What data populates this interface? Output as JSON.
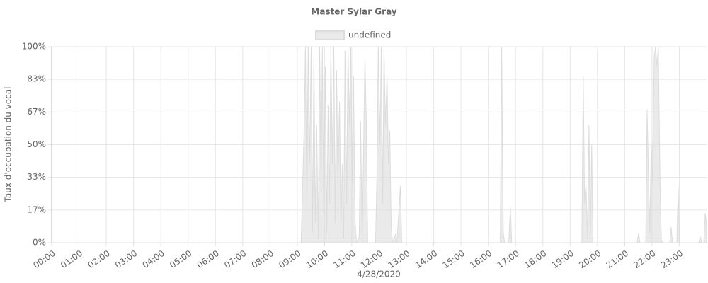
{
  "chart_data": {
    "type": "area",
    "title": "Master Sylar Gray",
    "x_label": "4/28/2020",
    "y_label": "Taux d'occupation du vocal",
    "legend": "top",
    "grid": true,
    "xlim": [
      0,
      24
    ],
    "xticks": [
      {
        "value": 0,
        "label": "00:00"
      },
      {
        "value": 1,
        "label": "01:00"
      },
      {
        "value": 2,
        "label": "02:00"
      },
      {
        "value": 3,
        "label": "03:00"
      },
      {
        "value": 4,
        "label": "04:00"
      },
      {
        "value": 5,
        "label": "05:00"
      },
      {
        "value": 6,
        "label": "06:00"
      },
      {
        "value": 7,
        "label": "07:00"
      },
      {
        "value": 8,
        "label": "08:00"
      },
      {
        "value": 9,
        "label": "09:00"
      },
      {
        "value": 10,
        "label": "10:00"
      },
      {
        "value": 11,
        "label": "11:00"
      },
      {
        "value": 12,
        "label": "12:00"
      },
      {
        "value": 13,
        "label": "13:00"
      },
      {
        "value": 14,
        "label": "14:00"
      },
      {
        "value": 15,
        "label": "15:00"
      },
      {
        "value": 16,
        "label": "16:00"
      },
      {
        "value": 17,
        "label": "17:00"
      },
      {
        "value": 18,
        "label": "18:00"
      },
      {
        "value": 19,
        "label": "19:00"
      },
      {
        "value": 20,
        "label": "20:00"
      },
      {
        "value": 21,
        "label": "21:00"
      },
      {
        "value": 22,
        "label": "22:00"
      },
      {
        "value": 23,
        "label": "23:00"
      }
    ],
    "ylim": [
      0,
      100
    ],
    "yticks": [
      {
        "value": 0,
        "label": "0%"
      },
      {
        "value": 16.67,
        "label": "17%"
      },
      {
        "value": 33.33,
        "label": "33%"
      },
      {
        "value": 50,
        "label": "50%"
      },
      {
        "value": 66.67,
        "label": "67%"
      },
      {
        "value": 83.33,
        "label": "83%"
      },
      {
        "value": 100,
        "label": "100%"
      }
    ],
    "x": [
      0,
      9.14,
      9.25,
      9.3,
      9.35,
      9.4,
      9.45,
      9.51,
      9.56,
      9.61,
      9.66,
      9.71,
      9.77,
      9.82,
      9.87,
      9.92,
      9.97,
      10.03,
      10.08,
      10.13,
      10.18,
      10.23,
      10.29,
      10.34,
      10.39,
      10.44,
      10.49,
      10.55,
      10.6,
      10.65,
      10.7,
      10.75,
      10.81,
      10.86,
      10.91,
      10.96,
      11.01,
      11.06,
      11.12,
      11.17,
      11.27,
      11.32,
      11.38,
      11.48,
      11.53,
      11.58,
      11.87,
      11.92,
      11.97,
      12.03,
      12.08,
      12.13,
      12.18,
      12.23,
      12.29,
      12.34,
      12.39,
      12.44,
      12.49,
      12.6,
      12.65,
      12.78,
      12.83,
      16.44,
      16.49,
      16.55,
      16.6,
      16.75,
      16.81,
      16.86,
      19.43,
      19.48,
      19.53,
      19.58,
      19.64,
      19.69,
      19.74,
      19.79,
      19.84,
      21.45,
      21.51,
      21.56,
      21.77,
      21.82,
      21.87,
      21.92,
      21.97,
      22.01,
      22.08,
      22.13,
      22.18,
      22.23,
      22.29,
      22.34,
      22.39,
      22.65,
      22.7,
      22.75,
      22.91,
      22.96,
      23.01,
      23.71,
      23.77,
      23.82,
      23.9,
      23.95,
      24.0
    ],
    "series": [
      {
        "name": "undefined",
        "color": "#dcdcdc",
        "values": [
          0,
          0,
          57,
          100,
          20,
          100,
          40,
          100,
          5,
          95,
          10,
          60,
          2,
          100,
          30,
          100,
          15,
          90,
          5,
          70,
          20,
          100,
          40,
          100,
          10,
          88,
          30,
          72,
          5,
          40,
          2,
          98,
          20,
          100,
          60,
          100,
          30,
          85,
          10,
          0,
          3,
          62,
          0,
          95,
          63,
          0,
          0,
          35,
          100,
          50,
          100,
          20,
          98,
          60,
          85,
          40,
          57,
          10,
          0,
          4,
          0,
          29,
          0,
          0,
          100,
          5,
          0,
          0,
          18,
          0,
          0,
          85,
          20,
          30,
          2,
          60,
          5,
          50,
          0,
          0,
          5,
          0,
          0,
          68,
          35,
          5,
          50,
          30,
          95,
          100,
          90,
          100,
          35,
          2,
          0,
          0,
          8,
          0,
          0,
          28,
          0,
          0,
          3,
          0,
          0,
          15,
          9
        ]
      }
    ]
  }
}
